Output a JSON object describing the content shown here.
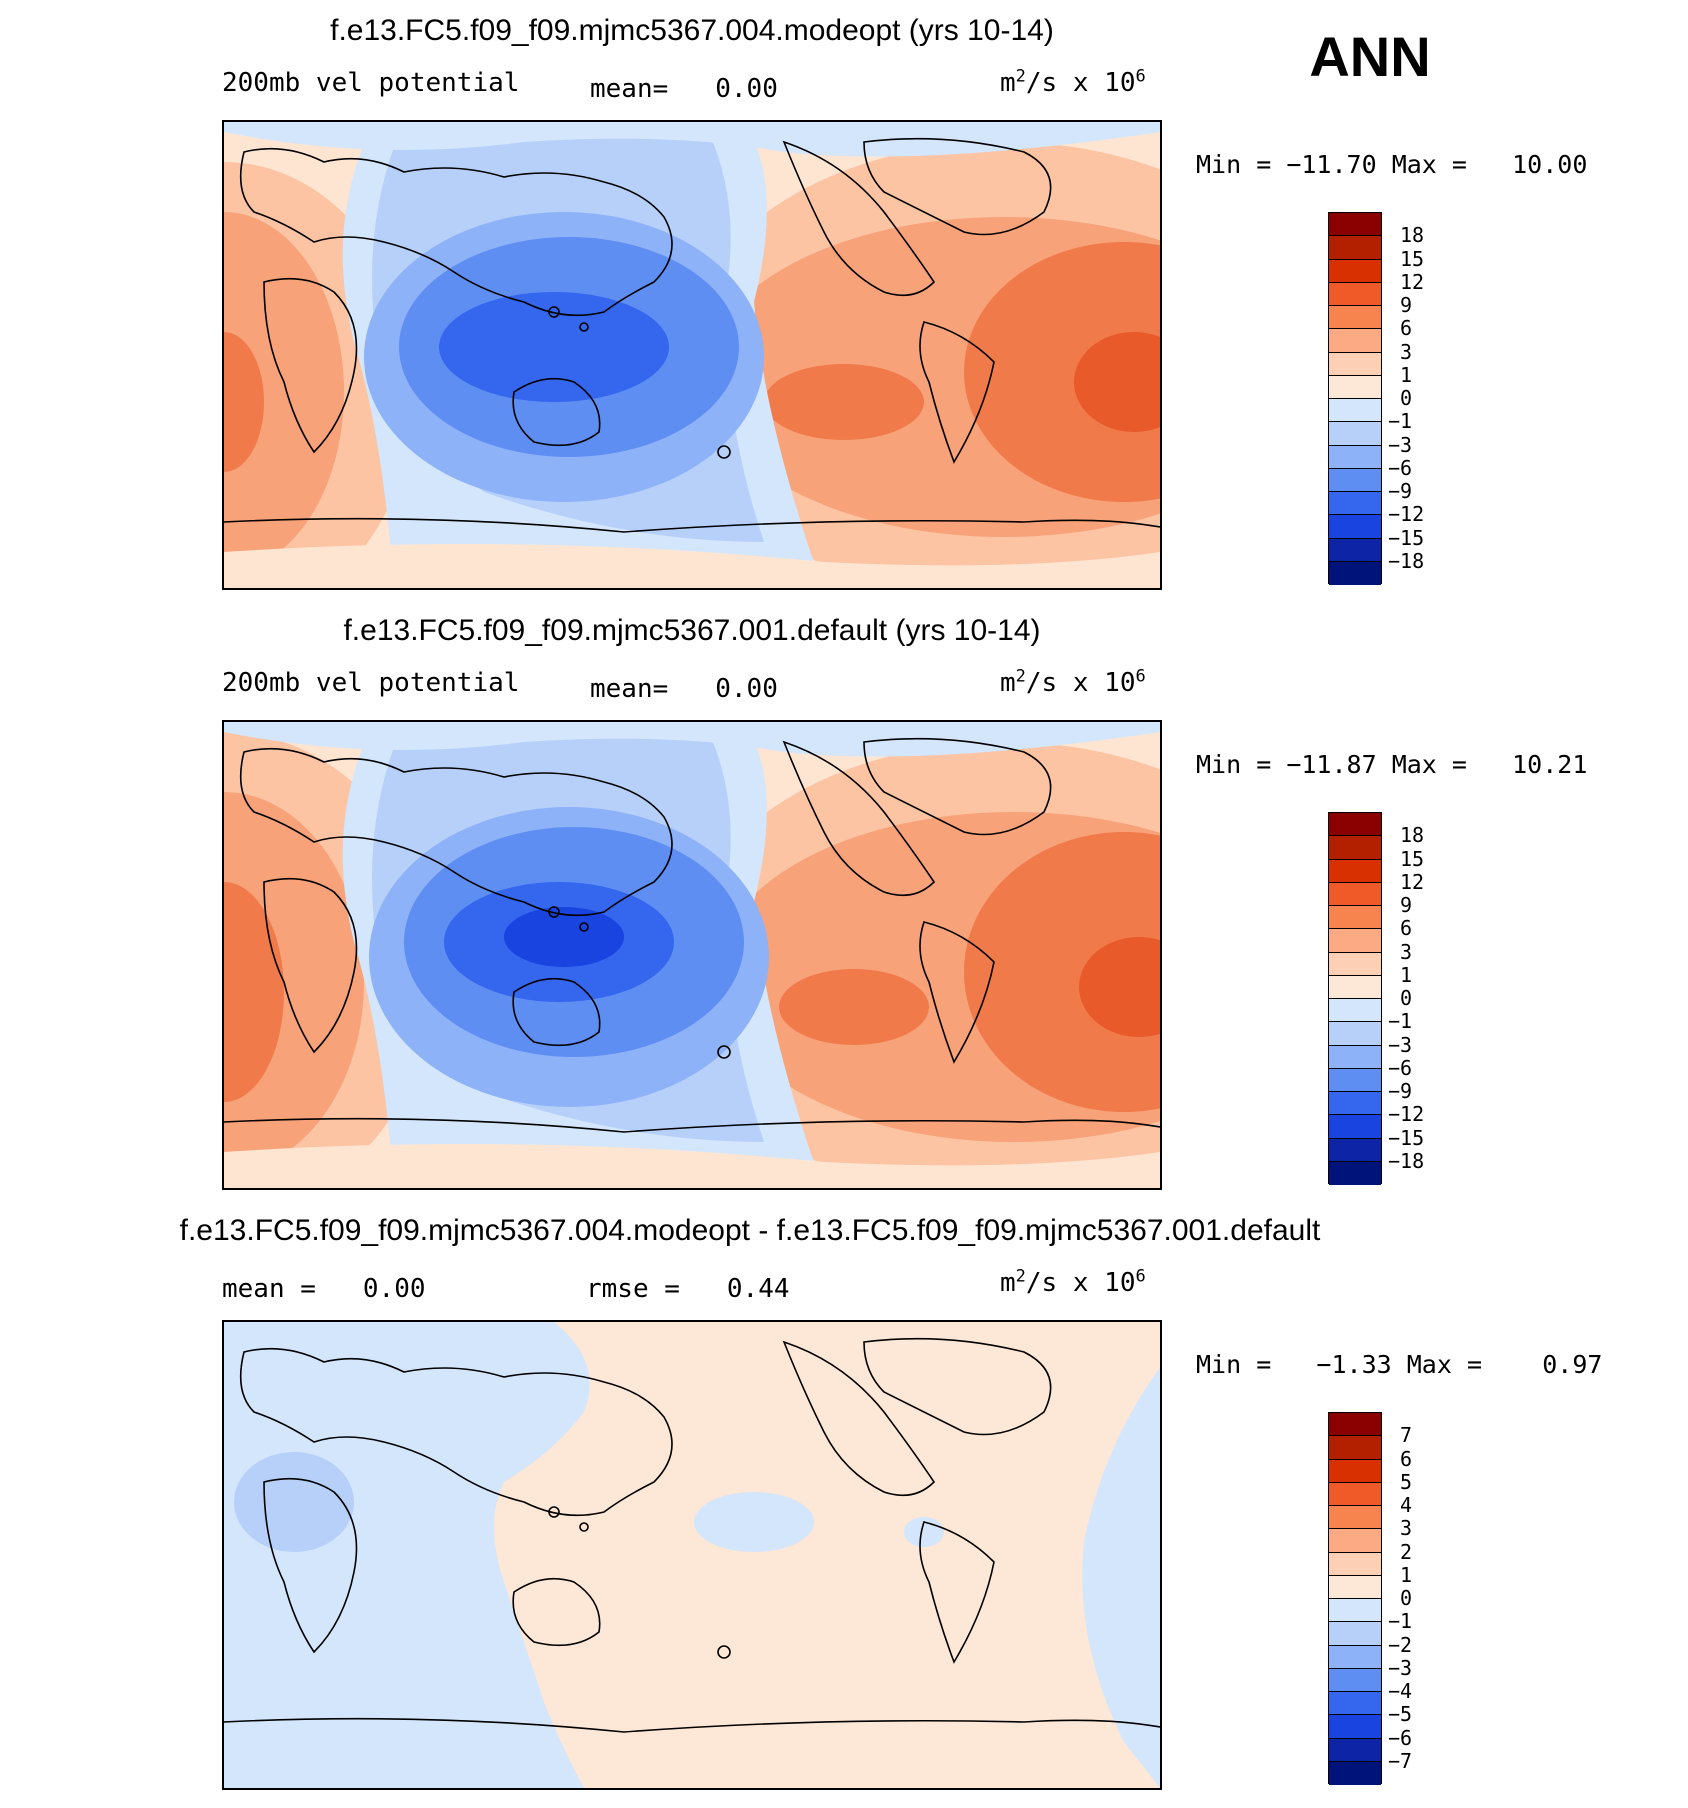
{
  "season": "ANN",
  "panels": [
    {
      "title": "f.e13.FC5.f09_f09.mjmc5367.004.modeopt (yrs 10-14)",
      "left_label": "200mb  vel  potential",
      "stat1_label": "mean=",
      "stat1_value": "0.00",
      "stat2_label": "",
      "stat2_value": "",
      "units_base": "m",
      "units_exp1": "2",
      "units_mid": "/s  x  10",
      "units_exp2": "6",
      "min_label": "Min  =",
      "min_value": "−11.70",
      "max_label": "Max  =",
      "max_value": "10.00",
      "colorbar_labels": [
        "18",
        "15",
        "12",
        "9",
        "6",
        "3",
        "1",
        "0",
        "−1",
        "−3",
        "−6",
        "−9",
        "−12",
        "−15",
        "−18"
      ]
    },
    {
      "title": "f.e13.FC5.f09_f09.mjmc5367.001.default (yrs 10-14)",
      "left_label": "200mb  vel  potential",
      "stat1_label": "mean=",
      "stat1_value": "0.00",
      "stat2_label": "",
      "stat2_value": "",
      "units_base": "m",
      "units_exp1": "2",
      "units_mid": "/s  x  10",
      "units_exp2": "6",
      "min_label": "Min  =",
      "min_value": "−11.87",
      "max_label": "Max  =",
      "max_value": "10.21",
      "colorbar_labels": [
        "18",
        "15",
        "12",
        "9",
        "6",
        "3",
        "1",
        "0",
        "−1",
        "−3",
        "−6",
        "−9",
        "−12",
        "−15",
        "−18"
      ]
    },
    {
      "title": "f.e13.FC5.f09_f09.mjmc5367.004.modeopt - f.e13.FC5.f09_f09.mjmc5367.001.default",
      "left_label": "",
      "stat1_label": "mean  =",
      "stat1_value": "0.00",
      "stat2_label": "rmse  =",
      "stat2_value": "0.44",
      "units_base": "m",
      "units_exp1": "2",
      "units_mid": "/s  x  10",
      "units_exp2": "6",
      "min_label": "Min  =",
      "min_value": "−1.33",
      "max_label": "Max  =",
      "max_value": "0.97",
      "colorbar_labels": [
        "7",
        "6",
        "5",
        "4",
        "3",
        "2",
        "1",
        "0",
        "−1",
        "−2",
        "−3",
        "−4",
        "−5",
        "−6",
        "−7"
      ]
    }
  ],
  "colorbar_colors": [
    "#8b0000",
    "#b22000",
    "#d83000",
    "#f05a28",
    "#f7844f",
    "#fcaa84",
    "#fdd0b5",
    "#fde7d6",
    "#d4e6fb",
    "#b6d0fa",
    "#8db2f7",
    "#5f8ef3",
    "#3466ee",
    "#1a44e0",
    "#0d24a6",
    "#00137a"
  ]
}
